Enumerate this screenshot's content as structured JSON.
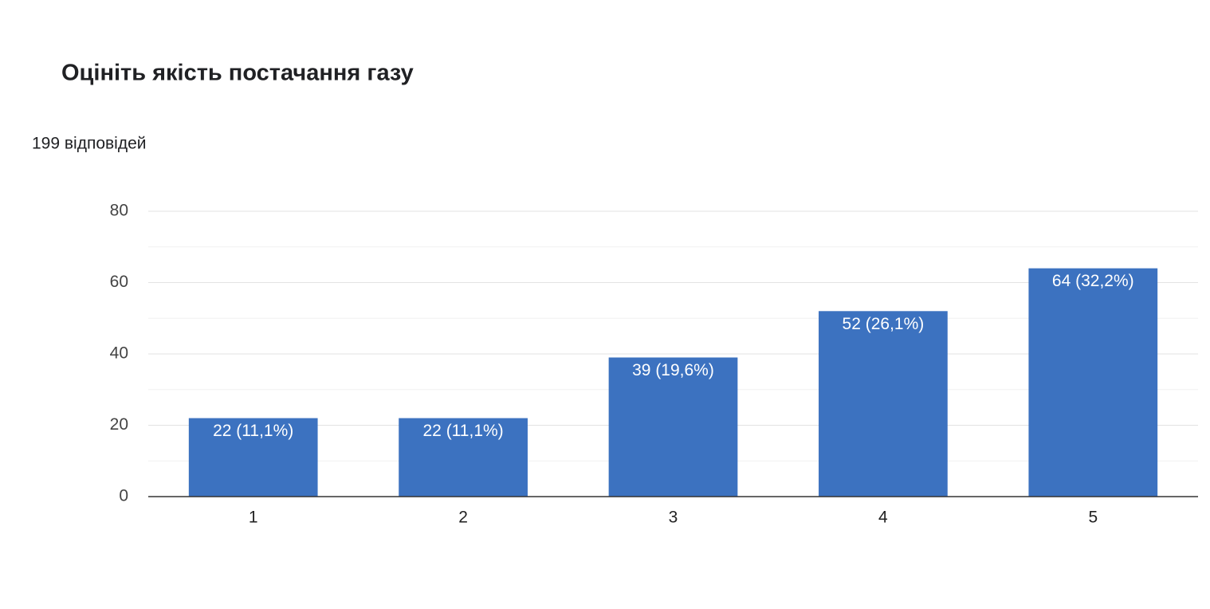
{
  "chart_data": {
    "type": "bar",
    "title": "Оцініть якість постачання газу",
    "subtitle": "199 відповідей",
    "categories": [
      "1",
      "2",
      "3",
      "4",
      "5"
    ],
    "values": [
      22,
      22,
      39,
      52,
      64
    ],
    "value_labels": [
      "22 (11,1%)",
      "22 (11,1%)",
      "39 (19,6%)",
      "52 (26,1%)",
      "64 (32,2%)"
    ],
    "color": "#3c72c0",
    "ylim": [
      0,
      80
    ],
    "yticks": [
      0,
      20,
      40,
      60,
      80
    ],
    "minor_yticks": [
      10,
      30,
      50,
      70
    ],
    "grid": true
  }
}
